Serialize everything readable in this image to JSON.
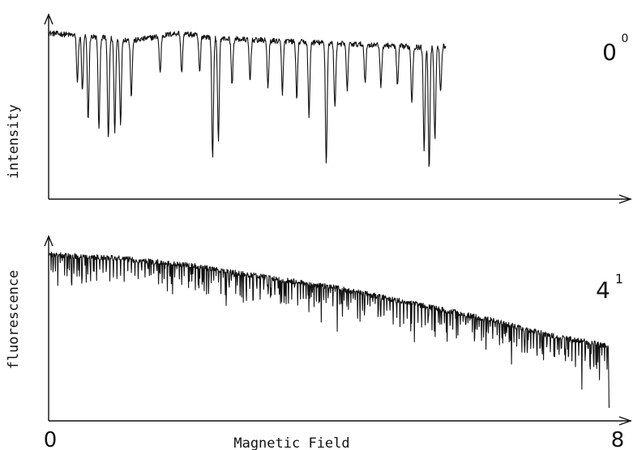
{
  "chart_data": {
    "type": "line",
    "xlabel": "Magnetic Field",
    "ylabel_parts": [
      "intensity",
      "fluorescence"
    ],
    "x_ticks": [
      "0",
      "8"
    ],
    "xlim": [
      0,
      8
    ],
    "grid": false,
    "panels": [
      {
        "name": "0",
        "label": "0",
        "label_sup": "0",
        "baseline_points": [
          [
            0.0,
            0.9
          ],
          [
            0.6,
            0.88
          ],
          [
            1.2,
            0.86
          ],
          [
            1.8,
            0.9
          ],
          [
            2.4,
            0.87
          ],
          [
            3.0,
            0.86
          ],
          [
            3.6,
            0.85
          ],
          [
            4.2,
            0.84
          ],
          [
            4.8,
            0.83
          ],
          [
            5.3,
            0.82
          ],
          [
            5.52,
            0.83
          ]
        ],
        "dips": [
          [
            0.4,
            0.25
          ],
          [
            0.47,
            0.3
          ],
          [
            0.55,
            0.45
          ],
          [
            0.7,
            0.5
          ],
          [
            0.83,
            0.55
          ],
          [
            0.92,
            0.5
          ],
          [
            1.0,
            0.45
          ],
          [
            1.15,
            0.3
          ],
          [
            1.55,
            0.2
          ],
          [
            1.85,
            0.22
          ],
          [
            2.1,
            0.2
          ],
          [
            2.28,
            0.65
          ],
          [
            2.36,
            0.55
          ],
          [
            2.55,
            0.25
          ],
          [
            2.8,
            0.22
          ],
          [
            3.05,
            0.25
          ],
          [
            3.25,
            0.28
          ],
          [
            3.45,
            0.3
          ],
          [
            3.62,
            0.4
          ],
          [
            3.86,
            0.65
          ],
          [
            3.98,
            0.35
          ],
          [
            4.15,
            0.25
          ],
          [
            4.4,
            0.2
          ],
          [
            4.62,
            0.22
          ],
          [
            4.85,
            0.22
          ],
          [
            5.05,
            0.3
          ],
          [
            5.22,
            0.55
          ],
          [
            5.29,
            0.65
          ],
          [
            5.37,
            0.5
          ],
          [
            5.45,
            0.25
          ]
        ]
      },
      {
        "name": "4",
        "label": "4",
        "label_sup": "1",
        "baseline_points": [
          [
            0.0,
            0.9
          ],
          [
            1.0,
            0.88
          ],
          [
            2.0,
            0.84
          ],
          [
            3.0,
            0.78
          ],
          [
            4.0,
            0.72
          ],
          [
            5.0,
            0.64
          ],
          [
            6.0,
            0.56
          ],
          [
            7.0,
            0.46
          ],
          [
            7.6,
            0.42
          ],
          [
            7.78,
            0.4
          ]
        ],
        "dips": [],
        "tail_drop": 0.07
      }
    ]
  }
}
